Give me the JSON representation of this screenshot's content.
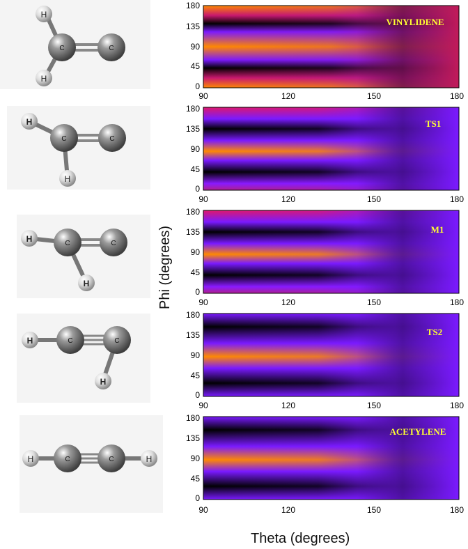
{
  "figure": {
    "y_axis_label": "Phi (degrees)",
    "x_axis_label": "Theta (degrees)",
    "x_ticks": [
      "90",
      "120",
      "150",
      "180"
    ],
    "y_ticks": [
      "0",
      "45",
      "90",
      "135",
      "180"
    ],
    "colors": {
      "dark": "#000000",
      "purple": "#7a1aff",
      "magenta": "#c11a6a",
      "orange": "#ff7a00",
      "label_yellow": "#ffff33",
      "atom_gray": "#8c8c8c",
      "hydrogen_white": "#e8e8e8"
    }
  },
  "panels": [
    {
      "name": "VINYLIDENE",
      "label": "VINYLIDENE",
      "atom_labels": [
        "H",
        "C",
        "C",
        "H"
      ]
    },
    {
      "name": "TS1",
      "label": "TS1",
      "atom_labels": [
        "H",
        "C",
        "C",
        "H"
      ]
    },
    {
      "name": "M1",
      "label": "M1",
      "atom_labels": [
        "H",
        "C",
        "C",
        "H"
      ]
    },
    {
      "name": "TS2",
      "label": "TS2",
      "atom_labels": [
        "H",
        "C",
        "C",
        "H"
      ]
    },
    {
      "name": "ACETYLENE",
      "label": "ACETYLENE",
      "atom_labels": [
        "H",
        "C",
        "C",
        "H"
      ]
    }
  ]
}
